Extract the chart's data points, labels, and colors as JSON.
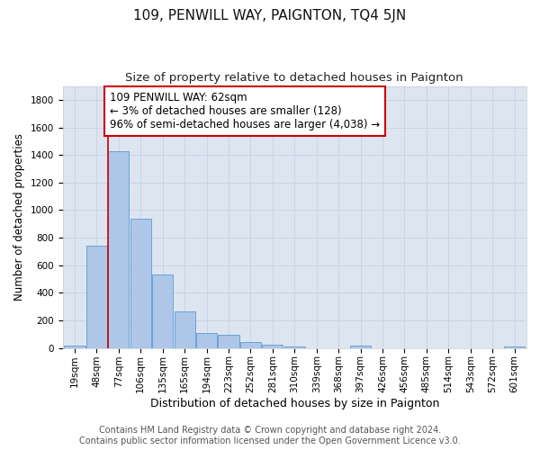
{
  "title": "109, PENWILL WAY, PAIGNTON, TQ4 5JN",
  "subtitle": "Size of property relative to detached houses in Paignton",
  "xlabel": "Distribution of detached houses by size in Paignton",
  "ylabel": "Number of detached properties",
  "bar_categories": [
    "19sqm",
    "48sqm",
    "77sqm",
    "106sqm",
    "135sqm",
    "165sqm",
    "194sqm",
    "223sqm",
    "252sqm",
    "281sqm",
    "310sqm",
    "339sqm",
    "368sqm",
    "397sqm",
    "426sqm",
    "456sqm",
    "485sqm",
    "514sqm",
    "543sqm",
    "572sqm",
    "601sqm"
  ],
  "bar_values": [
    20,
    745,
    1425,
    940,
    530,
    265,
    108,
    93,
    45,
    25,
    13,
    0,
    0,
    18,
    0,
    0,
    0,
    0,
    0,
    0,
    13
  ],
  "bar_color": "#aec6e8",
  "bar_edge_color": "#5b9bd5",
  "vline_color": "#cc0000",
  "annotation_text": "109 PENWILL WAY: 62sqm\n← 3% of detached houses are smaller (128)\n96% of semi-detached houses are larger (4,038) →",
  "annotation_box_color": "white",
  "annotation_box_edge_color": "#cc0000",
  "ylim": [
    0,
    1900
  ],
  "yticks": [
    0,
    200,
    400,
    600,
    800,
    1000,
    1200,
    1400,
    1600,
    1800
  ],
  "grid_color": "#c8d4e8",
  "background_color": "#dde5f0",
  "footer_line1": "Contains HM Land Registry data © Crown copyright and database right 2024.",
  "footer_line2": "Contains public sector information licensed under the Open Government Licence v3.0.",
  "title_fontsize": 11,
  "subtitle_fontsize": 9.5,
  "xlabel_fontsize": 9,
  "ylabel_fontsize": 8.5,
  "tick_fontsize": 7.5,
  "annotation_fontsize": 8.5,
  "footer_fontsize": 7
}
